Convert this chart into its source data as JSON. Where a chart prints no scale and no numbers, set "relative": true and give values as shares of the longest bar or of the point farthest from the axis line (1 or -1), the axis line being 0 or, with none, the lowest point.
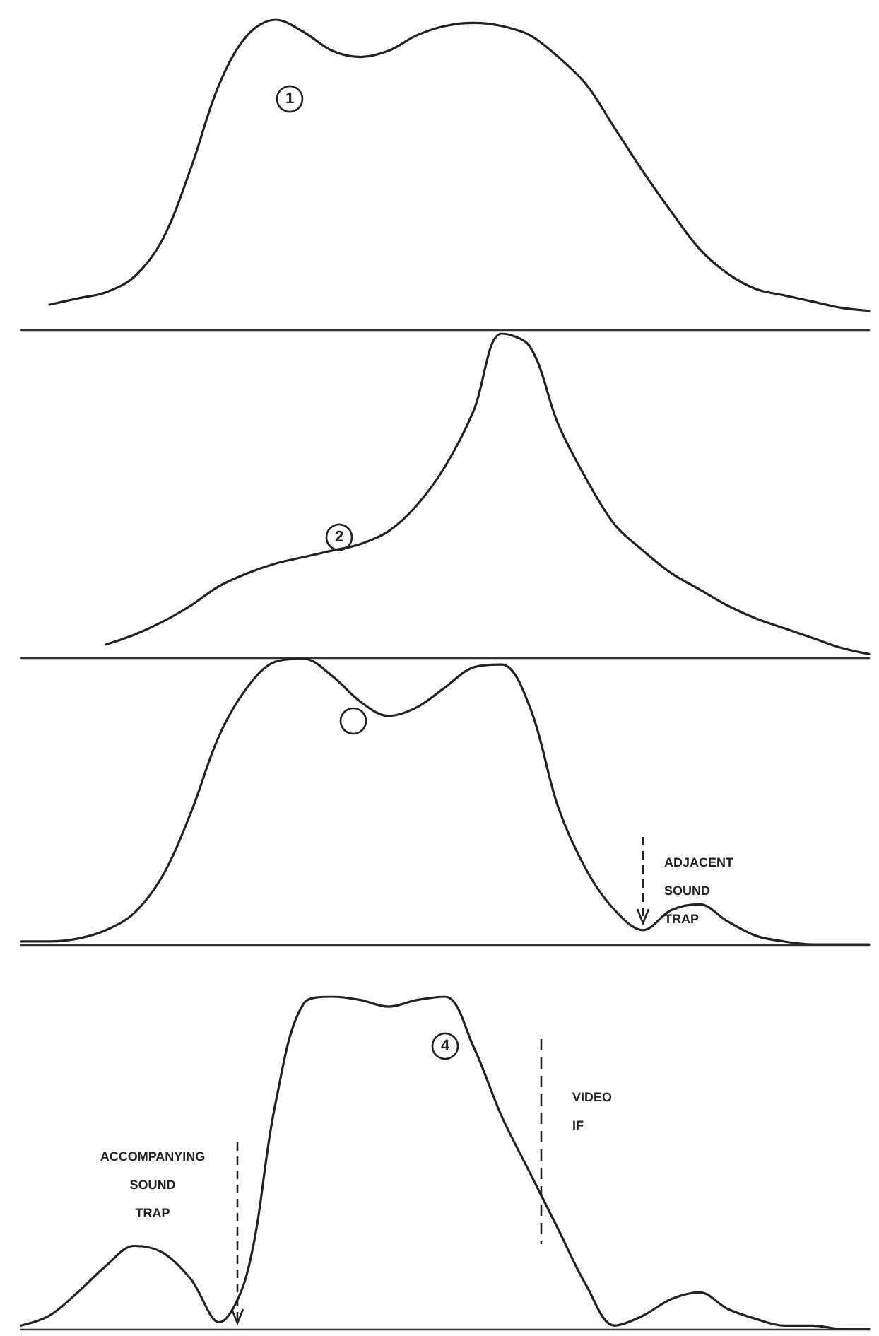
{
  "chart_data": [
    {
      "type": "line",
      "relative": true,
      "categories": [
        null,
        null,
        null,
        null,
        null,
        null,
        null,
        null,
        null,
        null,
        null,
        null,
        null,
        null,
        null,
        null,
        null,
        null,
        null,
        null,
        null,
        null,
        null,
        null,
        null,
        null,
        null,
        null,
        null,
        null,
        null
      ],
      "color": "#222222",
      "values": [
        null,
        0.08,
        0.1,
        0.12,
        0.17,
        0.29,
        0.52,
        0.79,
        0.95,
        1,
        0.96,
        0.9,
        0.88,
        0.9,
        0.95,
        0.98,
        0.99,
        0.98,
        0.95,
        0.88,
        0.79,
        0.65,
        0.51,
        0.38,
        0.26,
        0.18,
        0.13,
        0.11,
        0.09,
        0.07,
        0.06
      ],
      "annotations": [
        "1"
      ],
      "marker": "none",
      "line_style": "solid",
      "tick_labels": false
    },
    {
      "type": "line",
      "relative": true,
      "categories": [
        null,
        null,
        null,
        null,
        null,
        null,
        null,
        null,
        null,
        null,
        null,
        null,
        null,
        null,
        null,
        null,
        null,
        null,
        null,
        null,
        null,
        null,
        null,
        null,
        null,
        null,
        null,
        null,
        null,
        null,
        null
      ],
      "color": "#222222",
      "values": [
        null,
        null,
        null,
        0.04,
        0.07,
        0.11,
        0.16,
        0.22,
        0.26,
        0.29,
        0.31,
        0.33,
        0.35,
        0.39,
        0.47,
        0.59,
        0.76,
        1,
        0.96,
        0.72,
        0.55,
        0.41,
        0.33,
        0.26,
        0.21,
        0.16,
        0.12,
        0.09,
        0.06,
        0.03,
        0.01
      ],
      "annotations": [
        "2"
      ],
      "marker": "none",
      "line_style": "solid",
      "tick_labels": false
    },
    {
      "type": "line",
      "relative": true,
      "categories": [
        null,
        null,
        null,
        null,
        null,
        null,
        null,
        null,
        null,
        null,
        null,
        null,
        null,
        null,
        null,
        null,
        null,
        null,
        null,
        null,
        null,
        null,
        null,
        null,
        null,
        null,
        null,
        null,
        null,
        null,
        null
      ],
      "color": "#222222",
      "values": [
        0.01,
        0.01,
        0.02,
        0.05,
        0.11,
        0.24,
        0.46,
        0.73,
        0.9,
        0.99,
        1,
        0.94,
        0.85,
        0.8,
        0.83,
        0.9,
        0.97,
        0.98,
        0.83,
        0.48,
        0.26,
        0.12,
        0.05,
        0.12,
        0.14,
        0.08,
        0.03,
        0.01,
        0,
        0,
        0
      ],
      "annotations": [
        "ADJACENT\nSOUND\nTRAP"
      ],
      "marker": "none",
      "line_style": "solid",
      "tick_labels": false
    },
    {
      "type": "line",
      "relative": true,
      "categories": [
        null,
        null,
        null,
        null,
        null,
        null,
        null,
        null,
        null,
        null,
        null,
        null,
        null,
        null,
        null,
        null,
        null,
        null,
        null,
        null,
        null,
        null,
        null,
        null,
        null,
        null,
        null,
        null,
        null,
        null,
        null
      ],
      "color": "#222222",
      "values": [
        0.01,
        0.04,
        0.11,
        0.19,
        0.25,
        0.23,
        0.15,
        0.02,
        0.17,
        0.68,
        0.98,
        1,
        0.99,
        0.97,
        0.99,
        1,
        0.85,
        0.64,
        0.47,
        0.3,
        0.13,
        0.01,
        0.04,
        0.09,
        0.11,
        0.06,
        0.03,
        0.01,
        0.01,
        0,
        0
      ],
      "annotations": [
        "4",
        "ACCOMPANYING\nSOUND\nTRAP",
        "VIDEO\nIF"
      ],
      "marker": "none",
      "line_style": "solid",
      "tick_labels": false
    }
  ]
}
